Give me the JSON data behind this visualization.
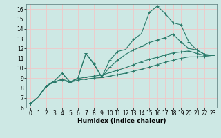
{
  "xlabel": "Humidex (Indice chaleur)",
  "bg_color": "#cde8e4",
  "grid_color": "#f0c8c8",
  "line_color": "#2a7a6a",
  "xlim": [
    -0.5,
    23.5
  ],
  "ylim": [
    6,
    16.5
  ],
  "xticks": [
    0,
    1,
    2,
    3,
    4,
    5,
    6,
    7,
    8,
    9,
    10,
    11,
    12,
    13,
    14,
    15,
    16,
    17,
    18,
    19,
    20,
    21,
    22,
    23
  ],
  "yticks": [
    6,
    7,
    8,
    9,
    10,
    11,
    12,
    13,
    14,
    15,
    16
  ],
  "series": [
    {
      "x": [
        0,
        1,
        2,
        3,
        4,
        5,
        6,
        7,
        8,
        9,
        10,
        11,
        12,
        13,
        14,
        15,
        16,
        17,
        18,
        19,
        20,
        21,
        22,
        23
      ],
      "y": [
        6.4,
        7.1,
        8.2,
        8.7,
        9.5,
        8.6,
        9.0,
        11.5,
        10.4,
        9.1,
        10.8,
        11.7,
        11.9,
        12.9,
        13.5,
        15.65,
        16.3,
        15.55,
        14.6,
        14.4,
        12.65,
        11.85,
        11.4,
        11.3
      ]
    },
    {
      "x": [
        0,
        1,
        2,
        3,
        4,
        5,
        6,
        7,
        8,
        9,
        10,
        11,
        12,
        13,
        14,
        15,
        16,
        17,
        18,
        19,
        20,
        21,
        22,
        23
      ],
      "y": [
        6.4,
        7.1,
        8.2,
        8.7,
        9.5,
        8.6,
        9.0,
        11.5,
        10.5,
        9.1,
        10.1,
        10.8,
        11.4,
        11.85,
        12.2,
        12.6,
        12.85,
        13.1,
        13.45,
        12.65,
        12.0,
        11.85,
        11.4,
        11.3
      ]
    },
    {
      "x": [
        0,
        1,
        2,
        3,
        4,
        5,
        6,
        7,
        8,
        9,
        10,
        11,
        12,
        13,
        14,
        15,
        16,
        17,
        18,
        19,
        20,
        21,
        22,
        23
      ],
      "y": [
        6.4,
        7.1,
        8.2,
        8.6,
        8.9,
        8.6,
        8.95,
        9.1,
        9.2,
        9.3,
        9.55,
        9.8,
        10.05,
        10.35,
        10.65,
        10.9,
        11.1,
        11.35,
        11.55,
        11.65,
        11.75,
        11.5,
        11.3,
        11.3
      ]
    },
    {
      "x": [
        0,
        1,
        2,
        3,
        4,
        5,
        6,
        7,
        8,
        9,
        10,
        11,
        12,
        13,
        14,
        15,
        16,
        17,
        18,
        19,
        20,
        21,
        22,
        23
      ],
      "y": [
        6.4,
        7.1,
        8.2,
        8.6,
        8.8,
        8.55,
        8.8,
        8.9,
        9.0,
        9.05,
        9.2,
        9.35,
        9.5,
        9.7,
        9.9,
        10.1,
        10.35,
        10.6,
        10.8,
        11.0,
        11.15,
        11.15,
        11.2,
        11.3
      ]
    }
  ]
}
